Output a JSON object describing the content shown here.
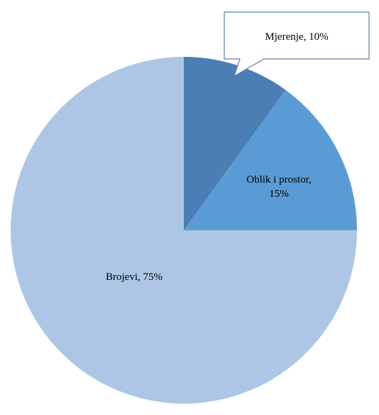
{
  "chart_data": {
    "type": "pie",
    "slices": [
      {
        "label": "Mjerenje",
        "value": 10,
        "value_text": "10%",
        "color": "#4a7eb4"
      },
      {
        "label": "Oblik i prostor",
        "value": 15,
        "value_text": "15%",
        "color": "#5b9bd5"
      },
      {
        "label": "Brojevi",
        "value": 75,
        "value_text": "75%",
        "color": "#adc6e5"
      }
    ],
    "title": "",
    "legend": "none",
    "data_labels": "on slices",
    "callout_slice": "Mjerenje"
  }
}
